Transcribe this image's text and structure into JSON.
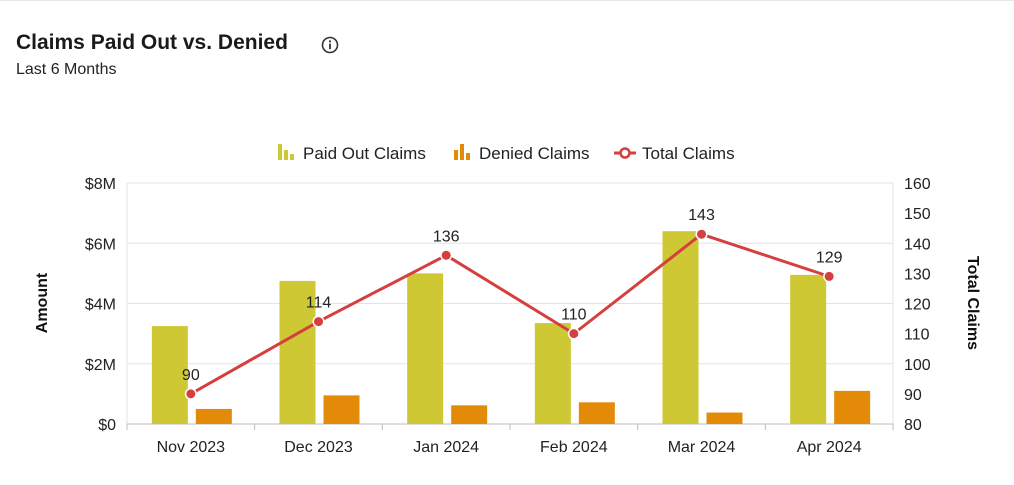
{
  "header": {
    "title": "Claims Paid Out vs. Denied",
    "subtitle": "Last 6 Months",
    "info_icon": "info-circle-icon"
  },
  "colors": {
    "paid": "#cdc833",
    "denied": "#e38b08",
    "total": "#d63f3f",
    "grid": "#e3e3e3",
    "axis": "#bdbdbd"
  },
  "chart_data": {
    "type": "bar",
    "categories": [
      "Nov 2023",
      "Dec 2023",
      "Jan 2024",
      "Feb 2024",
      "Mar 2024",
      "Apr 2024"
    ],
    "series": [
      {
        "name": "Paid Out Claims",
        "kind": "bar",
        "axis": "left",
        "values": [
          3250000,
          4750000,
          5000000,
          3350000,
          6400000,
          4950000
        ]
      },
      {
        "name": "Denied Claims",
        "kind": "bar",
        "axis": "left",
        "values": [
          500000,
          950000,
          620000,
          720000,
          380000,
          1100000
        ]
      },
      {
        "name": "Total Claims",
        "kind": "line",
        "axis": "right",
        "values": [
          90,
          114,
          136,
          110,
          143,
          129
        ]
      }
    ],
    "ylabel": "Amount",
    "y2label": "Total Claims",
    "ylim": [
      0,
      8000000
    ],
    "y2lim": [
      80,
      160
    ],
    "yticks": [
      "$0",
      "$2M",
      "$4M",
      "$6M",
      "$8M"
    ],
    "y2ticks": [
      "80",
      "90",
      "100",
      "110",
      "120",
      "130",
      "140",
      "150",
      "160"
    ],
    "legend_position": "top-center",
    "grid": true
  }
}
